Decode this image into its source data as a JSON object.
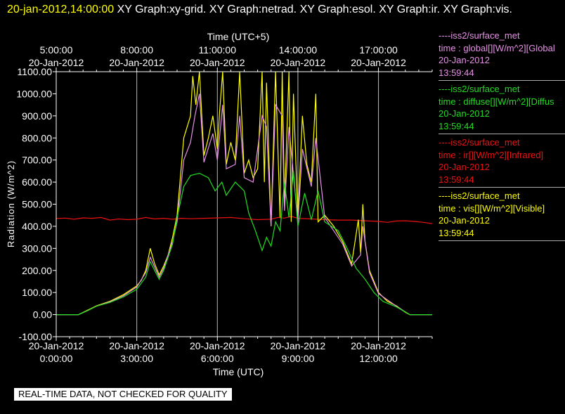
{
  "header": {
    "timestamp": "20-jan-2012,14:00:00",
    "title": "XY Graph:xy-grid.  XY Graph:netrad.  XY Graph:esol.  XY Graph:ir.  XY Graph:vis."
  },
  "legend": [
    {
      "source": "----iss2/surface_met",
      "variable": "time : global[][W/m^2][Global",
      "date": "20-Jan-2012",
      "time": "13:59:44",
      "color": "#e890e8"
    },
    {
      "source": "----iss2/surface_met",
      "variable": "time : diffuse[][W/m^2][Diffus",
      "date": "20-Jan-2012",
      "time": "13:59:44",
      "color": "#22dd22"
    },
    {
      "source": "----iss2/surface_met",
      "variable": "time : ir[][W/m^2][Infrared]",
      "date": "20-Jan-2012",
      "time": "13:59:44",
      "color": "#ee1111"
    },
    {
      "source": "----iss2/surface_met",
      "variable": "time : vis[][W/m^2][Visible]",
      "date": "20-Jan-2012",
      "time": "13:59:44",
      "color": "#ffff00"
    }
  ],
  "disclaimer": "REAL-TIME DATA, NOT CHECKED FOR QUALITY",
  "chart_data": {
    "type": "line",
    "xlabel": "Time (UTC)",
    "x2label": "Time (UTC+5)",
    "ylabel": "Radiation (W/m^2)",
    "xlim": [
      "2012-01-20T00:00",
      "2012-01-20T14:00"
    ],
    "ylim": [
      -100,
      1100
    ],
    "grid": true,
    "x_ticks": [
      {
        "value": "2012-01-20T00:00",
        "date": "20-Jan-2012",
        "time": "0:00:00"
      },
      {
        "value": "2012-01-20T03:00",
        "date": "20-Jan-2012",
        "time": "3:00:00"
      },
      {
        "value": "2012-01-20T06:00",
        "date": "20-Jan-2012",
        "time": "6:00:00"
      },
      {
        "value": "2012-01-20T09:00",
        "date": "20-Jan-2012",
        "time": "9:00:00"
      },
      {
        "value": "2012-01-20T12:00",
        "date": "20-Jan-2012",
        "time": "12:00:00"
      }
    ],
    "x2_ticks": [
      {
        "value": "2012-01-20T00:00",
        "date": "20-Jan-2012",
        "time": "5:00:00"
      },
      {
        "value": "2012-01-20T03:00",
        "date": "20-Jan-2012",
        "time": "8:00:00"
      },
      {
        "value": "2012-01-20T06:00",
        "date": "20-Jan-2012",
        "time": "11:00:00"
      },
      {
        "value": "2012-01-20T09:00",
        "date": "20-Jan-2012",
        "time": "14:00:00"
      },
      {
        "value": "2012-01-20T12:00",
        "date": "20-Jan-2012",
        "time": "17:00:00"
      }
    ],
    "y_ticks": [
      "-100.00",
      "0.00",
      "100.00",
      "200.00",
      "300.00",
      "400.00",
      "500.00",
      "600.00",
      "700.00",
      "800.00",
      "900.00",
      "1000.00",
      "1100.00"
    ],
    "series": [
      {
        "color": "#ee1111",
        "points": [
          [
            "2012-01-20T00:00",
            435
          ],
          [
            "2012-01-20T00:20",
            437
          ],
          [
            "2012-01-20T00:40",
            432
          ],
          [
            "2012-01-20T01:00",
            438
          ],
          [
            "2012-01-20T01:20",
            436
          ],
          [
            "2012-01-20T01:40",
            440
          ],
          [
            "2012-01-20T02:00",
            428
          ],
          [
            "2012-01-20T02:20",
            433
          ],
          [
            "2012-01-20T02:40",
            430
          ],
          [
            "2012-01-20T03:00",
            432
          ],
          [
            "2012-01-20T03:20",
            440
          ],
          [
            "2012-01-20T03:40",
            433
          ],
          [
            "2012-01-20T04:00",
            436
          ],
          [
            "2012-01-20T04:20",
            432
          ],
          [
            "2012-01-20T04:40",
            436
          ],
          [
            "2012-01-20T05:00",
            434
          ],
          [
            "2012-01-20T05:30",
            436
          ],
          [
            "2012-01-20T06:00",
            438
          ],
          [
            "2012-01-20T06:30",
            440
          ],
          [
            "2012-01-20T07:00",
            434
          ],
          [
            "2012-01-20T07:30",
            430
          ],
          [
            "2012-01-20T08:00",
            432
          ],
          [
            "2012-01-20T08:15",
            440
          ],
          [
            "2012-01-20T08:30",
            437
          ],
          [
            "2012-01-20T08:45",
            445
          ],
          [
            "2012-01-20T09:00",
            436
          ],
          [
            "2012-01-20T09:30",
            433
          ],
          [
            "2012-01-20T10:00",
            430
          ],
          [
            "2012-01-20T10:30",
            428
          ],
          [
            "2012-01-20T11:00",
            428
          ],
          [
            "2012-01-20T11:30",
            425
          ],
          [
            "2012-01-20T12:00",
            422
          ],
          [
            "2012-01-20T12:20",
            418
          ],
          [
            "2012-01-20T12:40",
            424
          ],
          [
            "2012-01-20T13:00",
            425
          ],
          [
            "2012-01-20T13:20",
            422
          ],
          [
            "2012-01-20T13:40",
            418
          ],
          [
            "2012-01-20T14:00",
            412
          ]
        ]
      },
      {
        "color": "#ffff00",
        "points": [
          [
            "2012-01-20T00:00",
            0
          ],
          [
            "2012-01-20T00:50",
            0
          ],
          [
            "2012-01-20T01:10",
            20
          ],
          [
            "2012-01-20T01:30",
            40
          ],
          [
            "2012-01-20T02:00",
            60
          ],
          [
            "2012-01-20T02:30",
            90
          ],
          [
            "2012-01-20T03:00",
            130
          ],
          [
            "2012-01-20T03:10",
            155
          ],
          [
            "2012-01-20T03:20",
            200
          ],
          [
            "2012-01-20T03:30",
            300
          ],
          [
            "2012-01-20T03:40",
            230
          ],
          [
            "2012-01-20T03:50",
            180
          ],
          [
            "2012-01-20T04:00",
            220
          ],
          [
            "2012-01-20T04:10",
            270
          ],
          [
            "2012-01-20T04:20",
            350
          ],
          [
            "2012-01-20T04:30",
            450
          ],
          [
            "2012-01-20T04:45",
            800
          ],
          [
            "2012-01-20T05:00",
            900
          ],
          [
            "2012-01-20T05:05",
            1080
          ],
          [
            "2012-01-20T05:12",
            950
          ],
          [
            "2012-01-20T05:20",
            1100
          ],
          [
            "2012-01-20T05:30",
            720
          ],
          [
            "2012-01-20T05:40",
            800
          ],
          [
            "2012-01-20T05:50",
            900
          ],
          [
            "2012-01-20T06:00",
            750
          ],
          [
            "2012-01-20T06:05",
            920
          ],
          [
            "2012-01-20T06:12",
            1100
          ],
          [
            "2012-01-20T06:20",
            680
          ],
          [
            "2012-01-20T06:30",
            780
          ],
          [
            "2012-01-20T06:40",
            700
          ],
          [
            "2012-01-20T06:50",
            1100
          ],
          [
            "2012-01-20T07:00",
            640
          ],
          [
            "2012-01-20T07:10",
            700
          ],
          [
            "2012-01-20T07:20",
            620
          ],
          [
            "2012-01-20T07:30",
            660
          ],
          [
            "2012-01-20T07:40",
            1100
          ],
          [
            "2012-01-20T07:45",
            600
          ],
          [
            "2012-01-20T07:50",
            1050
          ],
          [
            "2012-01-20T08:00",
            400
          ],
          [
            "2012-01-20T08:10",
            1100
          ],
          [
            "2012-01-20T08:20",
            440
          ],
          [
            "2012-01-20T08:25",
            1100
          ],
          [
            "2012-01-20T08:30",
            500
          ],
          [
            "2012-01-20T08:40",
            1100
          ],
          [
            "2012-01-20T08:45",
            420
          ],
          [
            "2012-01-20T08:50",
            1000
          ],
          [
            "2012-01-20T09:00",
            430
          ],
          [
            "2012-01-20T09:10",
            900
          ],
          [
            "2012-01-20T09:20",
            680
          ],
          [
            "2012-01-20T09:30",
            600
          ],
          [
            "2012-01-20T09:40",
            1000
          ],
          [
            "2012-01-20T09:45",
            420
          ],
          [
            "2012-01-20T10:00",
            450
          ],
          [
            "2012-01-20T10:20",
            400
          ],
          [
            "2012-01-20T10:40",
            330
          ],
          [
            "2012-01-20T11:00",
            230
          ],
          [
            "2012-01-20T11:15",
            430
          ],
          [
            "2012-01-20T11:20",
            280
          ],
          [
            "2012-01-20T11:25",
            500
          ],
          [
            "2012-01-20T11:30",
            330
          ],
          [
            "2012-01-20T11:40",
            200
          ],
          [
            "2012-01-20T12:00",
            100
          ],
          [
            "2012-01-20T12:20",
            60
          ],
          [
            "2012-01-20T12:40",
            40
          ],
          [
            "2012-01-20T13:00",
            10
          ],
          [
            "2012-01-20T13:10",
            0
          ],
          [
            "2012-01-20T14:00",
            0
          ]
        ]
      },
      {
        "color": "#e890e8",
        "points": [
          [
            "2012-01-20T00:00",
            0
          ],
          [
            "2012-01-20T00:50",
            0
          ],
          [
            "2012-01-20T01:10",
            18
          ],
          [
            "2012-01-20T01:30",
            38
          ],
          [
            "2012-01-20T02:00",
            58
          ],
          [
            "2012-01-20T02:30",
            85
          ],
          [
            "2012-01-20T03:00",
            125
          ],
          [
            "2012-01-20T03:20",
            190
          ],
          [
            "2012-01-20T03:30",
            260
          ],
          [
            "2012-01-20T03:40",
            215
          ],
          [
            "2012-01-20T03:50",
            170
          ],
          [
            "2012-01-20T04:00",
            210
          ],
          [
            "2012-01-20T04:20",
            330
          ],
          [
            "2012-01-20T04:30",
            420
          ],
          [
            "2012-01-20T04:45",
            700
          ],
          [
            "2012-01-20T05:00",
            780
          ],
          [
            "2012-01-20T05:10",
            900
          ],
          [
            "2012-01-20T05:20",
            1000
          ],
          [
            "2012-01-20T05:30",
            690
          ],
          [
            "2012-01-20T05:50",
            820
          ],
          [
            "2012-01-20T06:00",
            700
          ],
          [
            "2012-01-20T06:12",
            950
          ],
          [
            "2012-01-20T06:20",
            660
          ],
          [
            "2012-01-20T06:40",
            680
          ],
          [
            "2012-01-20T06:50",
            900
          ],
          [
            "2012-01-20T07:00",
            620
          ],
          [
            "2012-01-20T07:20",
            600
          ],
          [
            "2012-01-20T07:40",
            900
          ],
          [
            "2012-01-20T07:50",
            850
          ],
          [
            "2012-01-20T08:00",
            400
          ],
          [
            "2012-01-20T08:10",
            950
          ],
          [
            "2012-01-20T08:25",
            900
          ],
          [
            "2012-01-20T08:30",
            470
          ],
          [
            "2012-01-20T08:40",
            850
          ],
          [
            "2012-01-20T09:00",
            420
          ],
          [
            "2012-01-20T09:10",
            750
          ],
          [
            "2012-01-20T09:30",
            580
          ],
          [
            "2012-01-20T09:40",
            800
          ],
          [
            "2012-01-20T10:00",
            440
          ],
          [
            "2012-01-20T10:40",
            320
          ],
          [
            "2012-01-20T11:00",
            220
          ],
          [
            "2012-01-20T11:20",
            270
          ],
          [
            "2012-01-20T11:25",
            400
          ],
          [
            "2012-01-20T11:40",
            190
          ],
          [
            "2012-01-20T12:00",
            95
          ],
          [
            "2012-01-20T12:40",
            38
          ],
          [
            "2012-01-20T13:10",
            0
          ],
          [
            "2012-01-20T14:00",
            0
          ]
        ]
      },
      {
        "color": "#22dd22",
        "points": [
          [
            "2012-01-20T00:00",
            0
          ],
          [
            "2012-01-20T00:50",
            0
          ],
          [
            "2012-01-20T01:10",
            18
          ],
          [
            "2012-01-20T01:30",
            38
          ],
          [
            "2012-01-20T02:00",
            55
          ],
          [
            "2012-01-20T02:30",
            80
          ],
          [
            "2012-01-20T03:00",
            115
          ],
          [
            "2012-01-20T03:20",
            170
          ],
          [
            "2012-01-20T03:30",
            240
          ],
          [
            "2012-01-20T03:40",
            200
          ],
          [
            "2012-01-20T03:50",
            160
          ],
          [
            "2012-01-20T04:00",
            200
          ],
          [
            "2012-01-20T04:20",
            320
          ],
          [
            "2012-01-20T04:30",
            440
          ],
          [
            "2012-01-20T04:45",
            580
          ],
          [
            "2012-01-20T05:00",
            630
          ],
          [
            "2012-01-20T05:20",
            640
          ],
          [
            "2012-01-20T05:40",
            620
          ],
          [
            "2012-01-20T05:55",
            560
          ],
          [
            "2012-01-20T06:10",
            600
          ],
          [
            "2012-01-20T06:20",
            540
          ],
          [
            "2012-01-20T06:40",
            600
          ],
          [
            "2012-01-20T07:00",
            560
          ],
          [
            "2012-01-20T07:10",
            460
          ],
          [
            "2012-01-20T07:25",
            380
          ],
          [
            "2012-01-20T07:40",
            290
          ],
          [
            "2012-01-20T07:50",
            350
          ],
          [
            "2012-01-20T08:00",
            310
          ],
          [
            "2012-01-20T08:10",
            420
          ],
          [
            "2012-01-20T08:20",
            380
          ],
          [
            "2012-01-20T08:30",
            600
          ],
          [
            "2012-01-20T08:40",
            440
          ],
          [
            "2012-01-20T08:50",
            650
          ],
          [
            "2012-01-20T09:00",
            400
          ],
          [
            "2012-01-20T09:15",
            550
          ],
          [
            "2012-01-20T09:30",
            430
          ],
          [
            "2012-01-20T09:45",
            560
          ],
          [
            "2012-01-20T10:00",
            420
          ],
          [
            "2012-01-20T10:30",
            380
          ],
          [
            "2012-01-20T10:50",
            300
          ],
          [
            "2012-01-20T11:10",
            210
          ],
          [
            "2012-01-20T11:30",
            160
          ],
          [
            "2012-01-20T11:50",
            100
          ],
          [
            "2012-01-20T12:10",
            60
          ],
          [
            "2012-01-20T12:40",
            35
          ],
          [
            "2012-01-20T13:10",
            0
          ],
          [
            "2012-01-20T14:00",
            0
          ]
        ]
      }
    ]
  }
}
